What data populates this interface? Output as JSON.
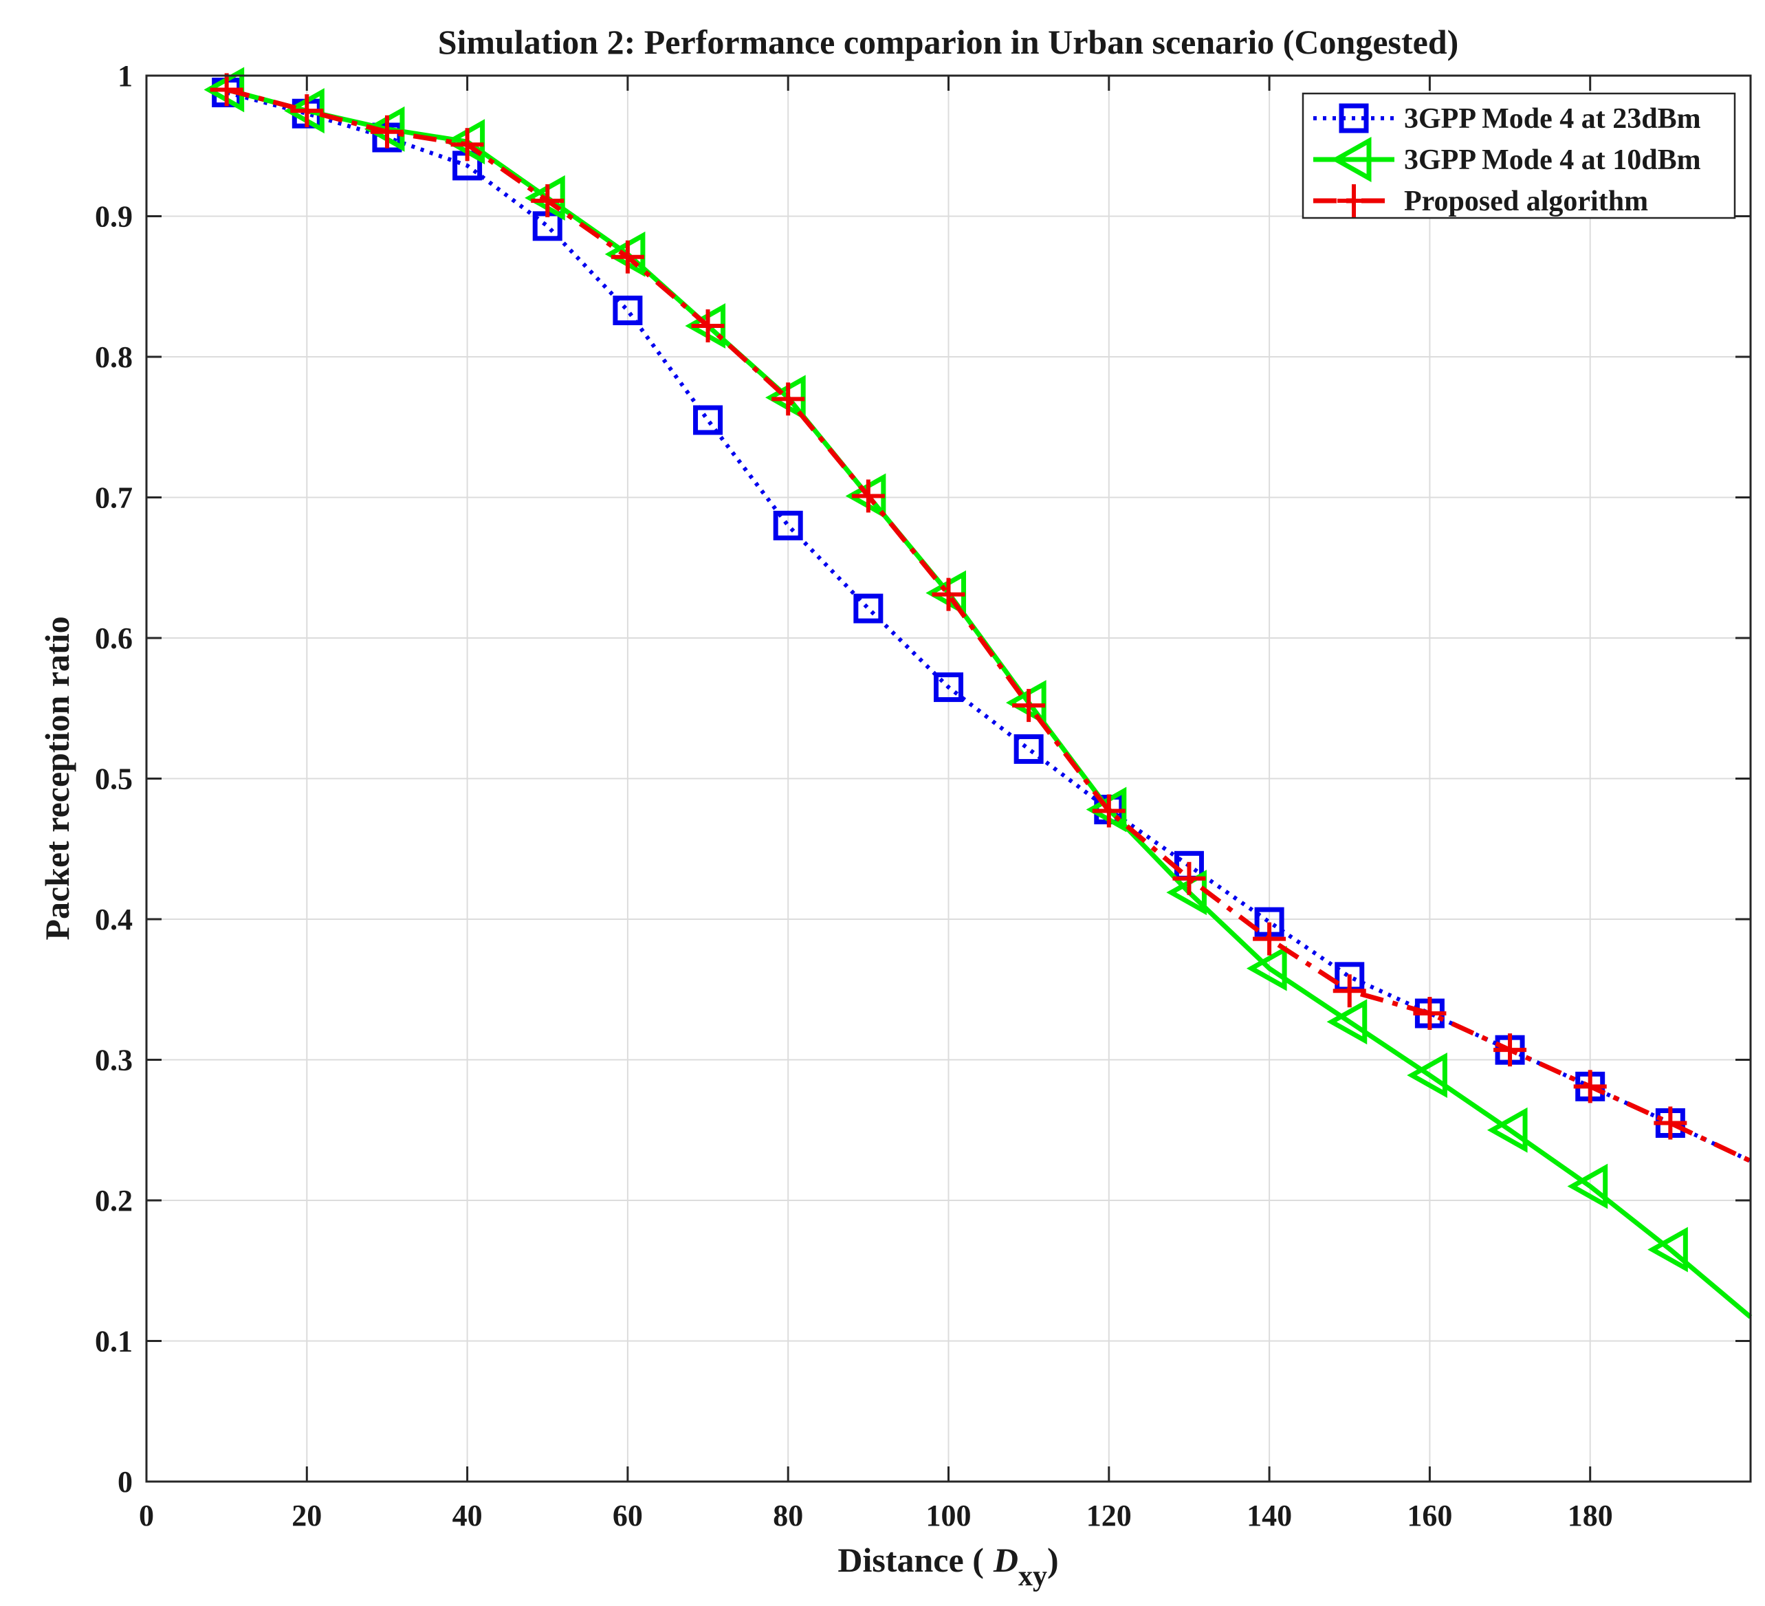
{
  "chart_data": {
    "type": "line",
    "title": "Simulation 2: Performance comparion in Urban scenario (Congested)",
    "xlabel": "Distance (",
    "xlabel_symbol": "D",
    "xlabel_subscript": "xy",
    "xlabel_close": ")",
    "ylabel": "Packet reception ratio",
    "xlim": [
      0,
      200
    ],
    "ylim": [
      0,
      1
    ],
    "grid": true,
    "legend_position": "top-right",
    "xticks": [
      0,
      20,
      40,
      60,
      80,
      100,
      120,
      140,
      160,
      180
    ],
    "yticks": [
      0,
      0.1,
      0.2,
      0.3,
      0.4,
      0.5,
      0.6,
      0.7,
      0.8,
      0.9,
      1
    ],
    "x": [
      10,
      20,
      30,
      40,
      50,
      60,
      70,
      80,
      90,
      100,
      110,
      120,
      130,
      140,
      150,
      160,
      170,
      180,
      190,
      200
    ],
    "series": [
      {
        "name": "3GPP Mode 4 at 23dBm",
        "color": "#0000ee",
        "line_style": "dotted",
        "marker": "square",
        "values": [
          0.988,
          0.973,
          0.956,
          0.936,
          0.893,
          0.833,
          0.755,
          0.68,
          0.621,
          0.565,
          0.521,
          0.478,
          0.438,
          0.398,
          0.359,
          0.333,
          0.307,
          0.281,
          0.255,
          0.228
        ]
      },
      {
        "name": "3GPP Mode 4 at 10dBm",
        "color": "#00ee00",
        "line_style": "solid",
        "marker": "triangle-left",
        "values": [
          0.99,
          0.975,
          0.962,
          0.953,
          0.913,
          0.873,
          0.822,
          0.771,
          0.701,
          0.632,
          0.554,
          0.478,
          0.419,
          0.365,
          0.327,
          0.289,
          0.25,
          0.21,
          0.165,
          0.117
        ]
      },
      {
        "name": "Proposed algorithm",
        "color": "#ee0000",
        "line_style": "dashdot",
        "marker": "plus",
        "values": [
          0.99,
          0.975,
          0.96,
          0.951,
          0.911,
          0.871,
          0.822,
          0.77,
          0.701,
          0.631,
          0.552,
          0.477,
          0.429,
          0.386,
          0.349,
          0.333,
          0.307,
          0.281,
          0.255,
          0.228
        ]
      }
    ]
  }
}
